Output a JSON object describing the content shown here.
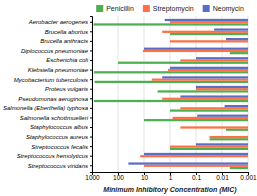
{
  "chart_data": {
    "type": "bar",
    "orientation": "horizontal",
    "log": "x",
    "grid": true,
    "legend": "top",
    "xlabel": "Minimum Inhibitory Concentration (MIC)",
    "categories": [
      "Aerobacter aerogenes",
      "Brucella abortus",
      "Brucella anthracis",
      "Diplococcus pneumoniae",
      "Escherichia coli",
      "Klebsiella pneumoniae",
      "Mycobacterium tuberculosis",
      "Proteus vulgaris",
      "Pseudomonas aeruginosa",
      "Salmonella (Eberthella) typhosa",
      "Salmonella schottmuelleri",
      "Staphylococcus albus",
      "Staphylococcus aureus",
      "Streptococcus fecalis",
      "Streptococcus hemolyticus",
      "Streptococcus viridans"
    ],
    "series": [
      {
        "name": "Penicillin",
        "color": "#4CAF50",
        "values": [
          870,
          1,
          0.001,
          0.005,
          100,
          850,
          800,
          3,
          850,
          1,
          10,
          0.007,
          0.03,
          1,
          0.001,
          0.005
        ]
      },
      {
        "name": "Streptomycin",
        "color": "#FF7043",
        "values": [
          1,
          2,
          1,
          11,
          0.4,
          1.2,
          5,
          0.1,
          2,
          0.4,
          0.8,
          0.4,
          0.03,
          1,
          14,
          10
        ]
      },
      {
        "name": "Neomycin",
        "color": "#5B6EC7",
        "values": [
          1.6,
          0.02,
          0.007,
          10,
          0.1,
          1,
          2,
          0.1,
          0.4,
          0.008,
          0.09,
          0.001,
          0.001,
          0.1,
          10,
          40
        ]
      }
    ],
    "xlim": [
      1000,
      0.001
    ],
    "xticks": [
      1000,
      100,
      10,
      1,
      0.1,
      0.01,
      0.001
    ]
  }
}
